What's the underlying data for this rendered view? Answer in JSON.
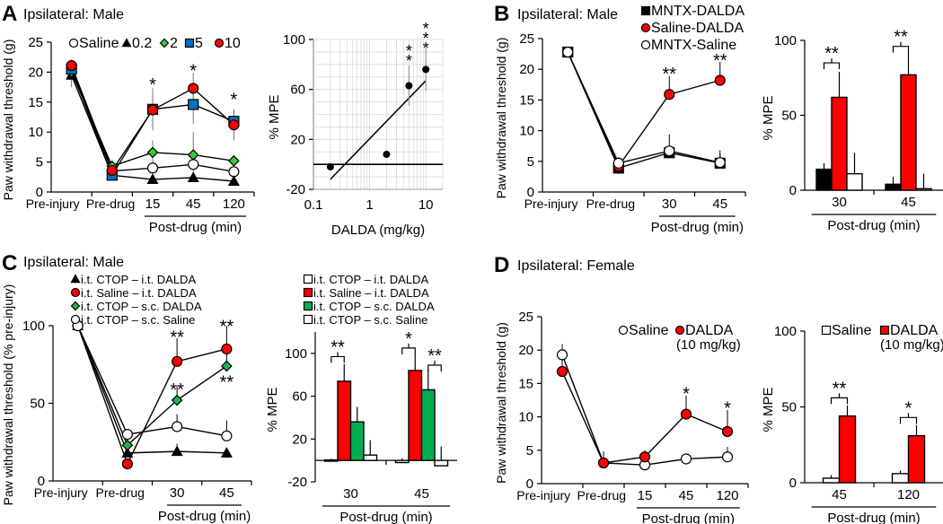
{
  "panels": [
    {
      "letter": "A",
      "subtitle": "Ipsilateral: Male"
    },
    {
      "letter": "B",
      "subtitle": "Ipsilateral: Male"
    },
    {
      "letter": "C",
      "subtitle": "Ipsilateral: Male"
    },
    {
      "letter": "D",
      "subtitle": "Ipsilateral: Female"
    }
  ],
  "colors": {
    "red": "#ff0000",
    "green_marker": "#33cc33",
    "green_bar": "#00b050",
    "blue": "#0070c0",
    "black": "#000000",
    "white": "#ffffff"
  },
  "chart_data": [
    {
      "panel": "A",
      "type": "line",
      "ylabel": "Paw withdrawal threshold (g)",
      "xlabel": "Post-drug (min)",
      "categories": [
        "Pre-injury",
        "Pre-drug",
        "15",
        "45",
        "120"
      ],
      "post_drug_from": 2,
      "ylim": [
        0,
        25
      ],
      "yticks": [
        0,
        5,
        10,
        15,
        20,
        25
      ],
      "series": [
        {
          "name": "Saline",
          "marker": "circle",
          "color": "#ffffff",
          "values": [
            20.5,
            3.5,
            4.0,
            4.6,
            3.4
          ],
          "err": [
            1.0,
            0.5,
            0.8,
            0.8,
            0.5
          ]
        },
        {
          "name": "0.2",
          "marker": "triangle",
          "color": "#000000",
          "values": [
            19.5,
            2.8,
            2.1,
            2.4,
            1.8
          ],
          "err": [
            2.0,
            0.5,
            0.4,
            0.4,
            0.3
          ]
        },
        {
          "name": "2",
          "marker": "diamond",
          "color": "#33cc33",
          "values": [
            20.0,
            4.3,
            6.6,
            6.2,
            5.2
          ],
          "err": [
            1.0,
            1.0,
            2.0,
            3.8,
            0.8
          ]
        },
        {
          "name": "5",
          "marker": "square",
          "color": "#0070c0",
          "values": [
            20.5,
            2.8,
            13.8,
            14.6,
            11.8
          ],
          "err": [
            1.0,
            0.8,
            3.5,
            3.2,
            2.0
          ]
        },
        {
          "name": "10",
          "marker": "circle",
          "color": "#ff0000",
          "values": [
            21.1,
            3.6,
            13.7,
            17.3,
            11.2
          ],
          "err": [
            1.0,
            1.0,
            3.3,
            2.6,
            2.6
          ]
        }
      ],
      "error_bars": "both",
      "annotations": [
        {
          "category": "15",
          "text": "*",
          "y": 18.3
        },
        {
          "category": "45",
          "text": "*",
          "y": 20.6
        },
        {
          "category": "120",
          "text": "*",
          "y": 15.8
        }
      ]
    },
    {
      "panel": "A",
      "type": "scatter",
      "ylabel": "% MPE",
      "xlabel": "DALDA (mg/kg)",
      "xscale": "log",
      "xlim": [
        0.1,
        20
      ],
      "xticks": [
        0.1,
        1,
        10
      ],
      "ylim": [
        -20,
        100
      ],
      "yticks": [
        -20,
        20,
        60,
        100
      ],
      "grid": true,
      "points": [
        {
          "x": 0.2,
          "y": -2,
          "err": 3
        },
        {
          "x": 2,
          "y": 8,
          "err": 0
        },
        {
          "x": 5,
          "y": 63,
          "err": 16
        },
        {
          "x": 10,
          "y": 76,
          "err": 17
        }
      ],
      "fit_line": [
        [
          0.2,
          -12
        ],
        [
          10,
          67
        ]
      ],
      "annotations": [
        {
          "x": 5,
          "text": "**",
          "y": 92
        },
        {
          "x": 10,
          "text": "***",
          "y": 110
        }
      ]
    },
    {
      "panel": "B",
      "type": "line",
      "ylabel": "Paw withdrawal threshold (g)",
      "xlabel": "Post-drug (min)",
      "categories": [
        "Pre-injury",
        "Pre-drug",
        "30",
        "45"
      ],
      "post_drug_from": 2,
      "ylim": [
        0,
        25
      ],
      "yticks": [
        0,
        5,
        10,
        15,
        20,
        25
      ],
      "series": [
        {
          "name": "MNTX-DALDA",
          "marker": "square",
          "color": "#000000",
          "values": [
            22.8,
            3.9,
            6.4,
            4.7
          ],
          "err": [
            0.3,
            0.5,
            1.0,
            1.5
          ]
        },
        {
          "name": "Saline-DALDA",
          "marker": "circle",
          "color": "#ff0000",
          "values": [
            22.8,
            4.2,
            15.9,
            18.2
          ],
          "err": [
            0.3,
            0.8,
            3.0,
            3.0
          ]
        },
        {
          "name": "MNTX-Saline",
          "marker": "circle",
          "color": "#ffffff",
          "values": [
            22.8,
            4.7,
            6.7,
            4.8
          ],
          "err": [
            0.3,
            1.0,
            2.7,
            2.0
          ]
        }
      ],
      "error_bars": "up",
      "annotations": [
        {
          "category": "30",
          "text": "**",
          "y": 19.6
        },
        {
          "category": "45",
          "text": "**",
          "y": 21.8
        }
      ]
    },
    {
      "panel": "B",
      "type": "bar",
      "ylabel": "% MPE",
      "xlabel": "Post-drug (min)",
      "categories": [
        "30",
        "45"
      ],
      "ylim": [
        0,
        100
      ],
      "yticks": [
        0,
        50,
        100
      ],
      "series": [
        {
          "name": "MNTX-DALDA",
          "color": "#000000",
          "values": [
            14,
            4
          ],
          "err": [
            4,
            5
          ]
        },
        {
          "name": "Saline-DALDA",
          "color": "#ff0000",
          "values": [
            62,
            77
          ],
          "err": [
            17,
            15
          ]
        },
        {
          "name": "MNTX-Saline",
          "color": "#ffffff",
          "values": [
            11,
            1
          ],
          "err": [
            14,
            10
          ]
        }
      ],
      "brackets": [
        {
          "category": "30",
          "from": 0,
          "to": 1,
          "text": "**",
          "y": 85
        },
        {
          "category": "45",
          "from": 0,
          "to": 1,
          "text": "**",
          "y": 96
        }
      ]
    },
    {
      "panel": "C",
      "type": "line",
      "ylabel": "Paw withdrawal threshold (% pre-injury)",
      "xlabel": "Post-drug (min)",
      "categories": [
        "Pre-injury",
        "Pre-drug",
        "30",
        "45"
      ],
      "post_drug_from": 2,
      "ylim": [
        0,
        100
      ],
      "yticks": [
        0,
        50,
        100
      ],
      "series": [
        {
          "name": "i.t. CTOP – i.t. DALDA",
          "marker": "triangle",
          "color": "#000000",
          "values": [
            100,
            18,
            19,
            18
          ],
          "err": [
            0,
            3,
            5,
            2
          ]
        },
        {
          "name": "i.t. Saline – i.t. DALDA",
          "marker": "circle",
          "color": "#ff0000",
          "values": [
            100,
            11,
            77,
            85
          ],
          "err": [
            0,
            3,
            15,
            15
          ]
        },
        {
          "name": "i.t. CTOP – s.c. DALDA",
          "marker": "diamond",
          "color": "#22b14c",
          "values": [
            100,
            23,
            52,
            74
          ],
          "err": [
            0,
            3,
            9,
            8
          ]
        },
        {
          "name": "i.t. CTOP – s.c. Saline",
          "marker": "circle",
          "color": "#ffffff",
          "values": [
            100,
            30,
            35,
            29
          ],
          "err": [
            0,
            3,
            8,
            10
          ]
        }
      ],
      "error_bars": "up",
      "annotations": [
        {
          "category": "30",
          "text": "**",
          "y": 94
        },
        {
          "category": "30",
          "text": "**",
          "y": 60
        },
        {
          "category": "45",
          "text": "**",
          "y": 101
        },
        {
          "category": "45",
          "text": "**",
          "y": 65
        }
      ]
    },
    {
      "panel": "C",
      "type": "bar",
      "ylabel": "% MPE",
      "xlabel": "Post-drug (min)",
      "categories": [
        "30",
        "45"
      ],
      "ylim": [
        -20,
        120
      ],
      "yticks": [
        -20,
        20,
        60,
        100
      ],
      "series": [
        {
          "name": "i.t. CTOP – i.t. DALDA",
          "color": "#ffffff",
          "values": [
            0.5,
            -2
          ],
          "err": [
            1,
            4
          ]
        },
        {
          "name": "i.t. Saline – i.t. DALDA",
          "color": "#ff0000",
          "values": [
            74,
            84
          ],
          "err": [
            16,
            16
          ]
        },
        {
          "name": "i.t. CTOP – s.c. DALDA",
          "color": "#00b050",
          "values": [
            36,
            66
          ],
          "err": [
            14,
            19
          ]
        },
        {
          "name": "i.t. CTOP – s.c. Saline",
          "color": "#ffffff",
          "values": [
            5,
            -5
          ],
          "err": [
            14,
            18
          ]
        }
      ],
      "brackets": [
        {
          "category": "30",
          "from": 0,
          "to": 1,
          "text": "**",
          "y": 97
        },
        {
          "category": "45",
          "from": 0,
          "to": 1,
          "text": "*",
          "y": 105
        },
        {
          "category": "45",
          "from": 2,
          "to": 3,
          "text": "**",
          "y": 89
        }
      ]
    },
    {
      "panel": "D",
      "type": "line",
      "ylabel": "Paw withdrawal threshold (g)",
      "xlabel": "Post-drug (min)",
      "categories": [
        "Pre-injury",
        "Pre-drug",
        "15",
        "45",
        "120"
      ],
      "post_drug_from": 2,
      "ylim": [
        0,
        25
      ],
      "yticks": [
        0,
        5,
        10,
        15,
        20,
        25
      ],
      "legend_note": "(10 mg/kg)",
      "series": [
        {
          "name": "Saline",
          "marker": "circle",
          "color": "#ffffff",
          "values": [
            19.3,
            3.1,
            2.8,
            3.7,
            4.0
          ],
          "err": [
            1.6,
            1.0,
            0.5,
            0.8,
            1.5
          ]
        },
        {
          "name": "DALDA",
          "marker": "circle",
          "color": "#ff0000",
          "values": [
            16.8,
            3.1,
            4.0,
            10.4,
            7.8
          ],
          "err": [
            2.0,
            1.7,
            1.0,
            2.8,
            3.2
          ]
        }
      ],
      "error_bars": "up",
      "annotations": [
        {
          "category": "45",
          "text": "*",
          "y": 13.8
        },
        {
          "category": "120",
          "text": "*",
          "y": 11.6
        }
      ]
    },
    {
      "panel": "D",
      "type": "bar",
      "ylabel": "% MPE",
      "xlabel": "Post-drug (min)",
      "categories": [
        "45",
        "120"
      ],
      "ylim": [
        0,
        100
      ],
      "yticks": [
        0,
        50,
        100
      ],
      "legend_note": "(10 mg/kg)",
      "series": [
        {
          "name": "Saline",
          "color": "#ffffff",
          "values": [
            3,
            6
          ],
          "err": [
            2,
            2
          ]
        },
        {
          "name": "DALDA",
          "color": "#ff0000",
          "values": [
            44,
            31
          ],
          "err": [
            7,
            7
          ]
        }
      ],
      "brackets": [
        {
          "category": "45",
          "from": 0,
          "to": 1,
          "text": "**",
          "y": 56
        },
        {
          "category": "120",
          "from": 0,
          "to": 1,
          "text": "*",
          "y": 43
        }
      ]
    }
  ]
}
